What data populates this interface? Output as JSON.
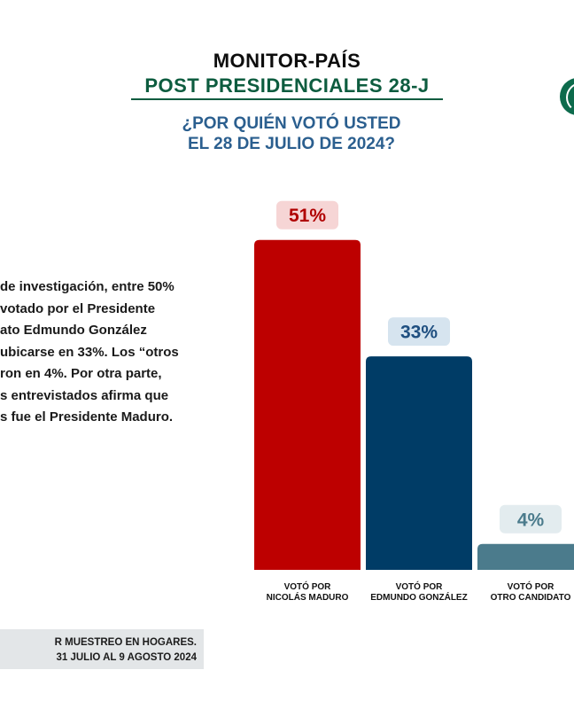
{
  "header": {
    "title": "MONITOR-PAÍS",
    "subtitle": "POST PRESIDENCIALES 28-J",
    "question_line1": "¿POR QUIÉN VOTÓ USTED",
    "question_line2": "EL 28 DE JULIO DE 2024?"
  },
  "colors": {
    "accent_green": "#0d5c3f",
    "question_blue": "#2b5f8f",
    "maduro_red": "#bd0000",
    "gonzalez_navy": "#003c66",
    "otro_slate": "#4b7b8c",
    "logo_green": "#0d6b4c"
  },
  "logo": {
    "icon": "logo-circle-icon"
  },
  "paragraph": {
    "lines": [
      "de investigación, entre 50%",
      "votado por el Presidente",
      "ato Edmundo González",
      "ubicarse en 33%. Los “otros",
      "ron en 4%. Por otra parte,",
      "s entrevistados afirma que",
      "s fue el Presidente Maduro."
    ]
  },
  "footnote": {
    "line1": "R MUESTREO EN HOGARES.",
    "line2": "31 JULIO AL 9 AGOSTO 2024"
  },
  "chart_data": {
    "type": "bar",
    "categories": [
      [
        "VOTÓ POR",
        "NICOLÁS MADURO"
      ],
      [
        "VOTÓ POR",
        "EDMUNDO GONZÁLEZ"
      ],
      [
        "VOTÓ POR",
        "OTRO CANDIDATO"
      ]
    ],
    "values": [
      51,
      33,
      4
    ],
    "value_labels": [
      "51%",
      "33%",
      "4%"
    ],
    "bar_colors": [
      "#bd0000",
      "#003c66",
      "#4b7b8c"
    ],
    "label_bg_colors": [
      "#f6d5d5",
      "#d6e4ef",
      "#e3ecef"
    ],
    "label_text_colors": [
      "#b00000",
      "#1f4f80",
      "#4b7b8c"
    ],
    "ylim": [
      0,
      100
    ],
    "grid": false,
    "legend": "none",
    "title": "",
    "xlabel": "",
    "ylabel": ""
  }
}
